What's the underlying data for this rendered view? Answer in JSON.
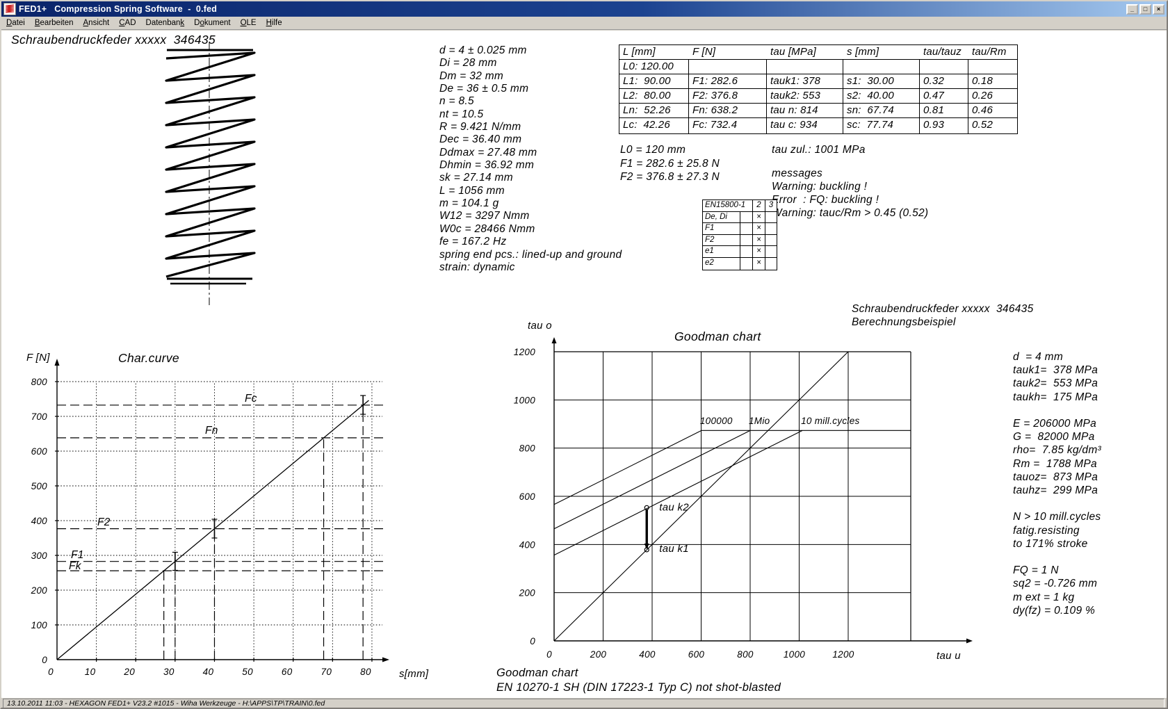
{
  "window": {
    "title": "FED1+   Compression Spring Software  -  0.fed",
    "icon": "spring-icon",
    "buttons": {
      "minimize": "_",
      "maximize": "□",
      "close": "×"
    }
  },
  "menubar": {
    "items": [
      {
        "label": "Datei",
        "accel_index": 0
      },
      {
        "label": "Bearbeiten",
        "accel_index": 0
      },
      {
        "label": "Ansicht",
        "accel_index": 0
      },
      {
        "label": "CAD",
        "accel_index": 0
      },
      {
        "label": "Datenbank",
        "accel_index": 8
      },
      {
        "label": "Dokument",
        "accel_index": 1
      },
      {
        "label": "OLE",
        "accel_index": 0
      },
      {
        "label": "Hilfe",
        "accel_index": 0
      }
    ]
  },
  "drawing": {
    "title": "Schraubendruckfeder xxxxx  346435"
  },
  "spring_params": {
    "lines": [
      "d = 4 ± 0.025 mm",
      "Di = 28 mm",
      "Dm = 32 mm",
      "De = 36 ± 0.5 mm",
      "n = 8.5",
      "nt = 10.5",
      "R = 9.421 N/mm",
      "Dec = 36.40 mm",
      "Ddmax = 27.48 mm",
      "Dhmin = 36.92 mm",
      "sk = 27.14 mm",
      "L = 1056 mm",
      "m = 104.1 g",
      "W12 = 3297 Nmm",
      "W0c = 28466 Nmm",
      "fe = 167.2 Hz",
      "spring end pcs.: lined-up and ground",
      "strain: dynamic"
    ]
  },
  "results_table": {
    "headers": [
      "L [mm]",
      "F [N]",
      "tau [MPa]",
      "s [mm]",
      "tau/tauz",
      "tau/Rm"
    ],
    "rows": [
      [
        "L0: 120.00",
        "",
        "",
        "",
        "",
        ""
      ],
      [
        "L1:  90.00",
        "F1: 282.6",
        "tauk1: 378",
        "s1:  30.00",
        "0.32",
        "0.18"
      ],
      [
        "L2:  80.00",
        "F2: 376.8",
        "tauk2: 553",
        "s2:  40.00",
        "0.47",
        "0.26"
      ],
      [
        "Ln:  52.26",
        "Fn: 638.2",
        "tau n: 814",
        "sn:  67.74",
        "0.81",
        "0.46"
      ],
      [
        "Lc:  42.26",
        "Fc: 732.4",
        "tau c: 934",
        "sc:  77.74",
        "0.93",
        "0.52"
      ]
    ]
  },
  "tolerances": {
    "lines": [
      "L0 = 120 mm",
      "F1 = 282.6 ± 25.8 N",
      "F2 = 376.8 ± 27.3 N"
    ]
  },
  "tau_zul": {
    "lines": [
      "tau zul.: 1001 MPa"
    ]
  },
  "messages": {
    "lines": [
      "messages",
      "Warning: buckling !",
      "Error  : FQ: buckling !",
      "Warning: tauc/Rm > 0.45 (0.52)"
    ]
  },
  "en_table": {
    "header": [
      "EN15800-1",
      "2",
      "3"
    ],
    "rows": [
      [
        "De, Di",
        "",
        "×",
        ""
      ],
      [
        "F1",
        "",
        "×",
        ""
      ],
      [
        "F2",
        "",
        "×",
        ""
      ],
      [
        "e1",
        "",
        "×",
        ""
      ],
      [
        "e2",
        "",
        "×",
        ""
      ]
    ]
  },
  "goodman_header": {
    "lines": [
      "Schraubendruckfeder xxxxx  346435",
      "Berechnungsbeispiel"
    ]
  },
  "goodman_side": {
    "lines": [
      "d  = 4 mm",
      "tauk1=  378 MPa",
      "tauk2=  553 MPa",
      "taukh=  175 MPa",
      "",
      "E = 206000 MPa",
      "G =  82000 MPa",
      "rho=  7.85 kg/dm³",
      "Rm =  1788 MPa",
      "tauoz=  873 MPa",
      "tauhz=  299 MPa",
      "",
      "N > 10 mill.cycles",
      "fatig.resisting",
      "to 171% stroke",
      "",
      "FQ = 1 N",
      "sq2 = -0.726 mm",
      "m ext = 1 kg",
      "dy(fz) = 0.109 %"
    ]
  },
  "goodman_footer": {
    "lines": [
      "Goodman chart",
      "EN 10270-1 SH (DIN 17223-1 Typ C) not shot-blasted"
    ]
  },
  "statusbar": {
    "text": "13.10.2011 11:03 - HEXAGON FED1+ V23.2 #1015 - Wiha Werkzeuge - H:\\APPS\\TP\\TRAIN\\0.fed"
  },
  "colors": {
    "titlebar_left": "#0a246a",
    "titlebar_right": "#a6caf0",
    "chrome": "#d4d0c8",
    "canvas": "#ffffff",
    "ink": "#000000",
    "icon_red": "#cc2222"
  },
  "chart_data": [
    {
      "type": "line",
      "title": "Char.curve",
      "xlabel": "s[mm]",
      "ylabel": "F [N]",
      "xlim": [
        0,
        80
      ],
      "ylim": [
        0,
        800
      ],
      "xticks": [
        0,
        10,
        20,
        30,
        40,
        50,
        60,
        70,
        80
      ],
      "yticks": [
        0,
        100,
        200,
        300,
        400,
        500,
        600,
        700,
        800
      ],
      "grid": "dotted",
      "series": [
        {
          "name": "spring-characteristic",
          "x": [
            0,
            79.2
          ],
          "y": [
            0,
            746
          ],
          "rate_N_per_mm": 9.421
        }
      ],
      "levels": [
        {
          "label": "Fc",
          "F": 732.4,
          "s": 77.74,
          "v_top": 760
        },
        {
          "label": "Fn",
          "F": 638.2,
          "s": 67.74,
          "v_top": 638.2
        },
        {
          "label": "F2",
          "F": 376.8,
          "s": 40,
          "v_top": 404
        },
        {
          "label": "F1",
          "F": 282.6,
          "s": 30,
          "v_top": 309
        },
        {
          "label": "Fk",
          "F": 255.7,
          "s": 27.14,
          "v_top": 256
        }
      ],
      "error_bars": [
        {
          "s": 30,
          "F_low": 257,
          "F_high": 309
        },
        {
          "s": 40,
          "F_low": 350,
          "F_high": 404
        },
        {
          "s": 77.74,
          "F_low": 706,
          "F_high": 760
        }
      ]
    },
    {
      "type": "line",
      "title": "Goodman chart",
      "xlabel": "tau u",
      "ylabel": "tau o",
      "xlim": [
        0,
        1200
      ],
      "ylim": [
        0,
        1200
      ],
      "xticks": [
        0,
        200,
        400,
        600,
        800,
        1000,
        1200
      ],
      "yticks": [
        0,
        200,
        400,
        600,
        800,
        1000,
        1200
      ],
      "grid": "solid",
      "diagonal": {
        "x": [
          0,
          1200
        ],
        "y": [
          0,
          1200
        ]
      },
      "plateau_tau_o": 873,
      "fatigue_lines": [
        {
          "label": "100000",
          "intercept_tau_o": 566,
          "knee_tau_u": 601
        },
        {
          "label": "1Mio",
          "intercept_tau_o": 465,
          "knee_tau_u": 800
        },
        {
          "label": "10 mill.cycles",
          "intercept_tau_o": 356,
          "knee_tau_u": 1013
        }
      ],
      "operating_point": {
        "tau_u": 378,
        "tau_k1": 378,
        "tau_k2": 553,
        "label_k1": "tau k1",
        "label_k2": "tau k2"
      }
    }
  ]
}
